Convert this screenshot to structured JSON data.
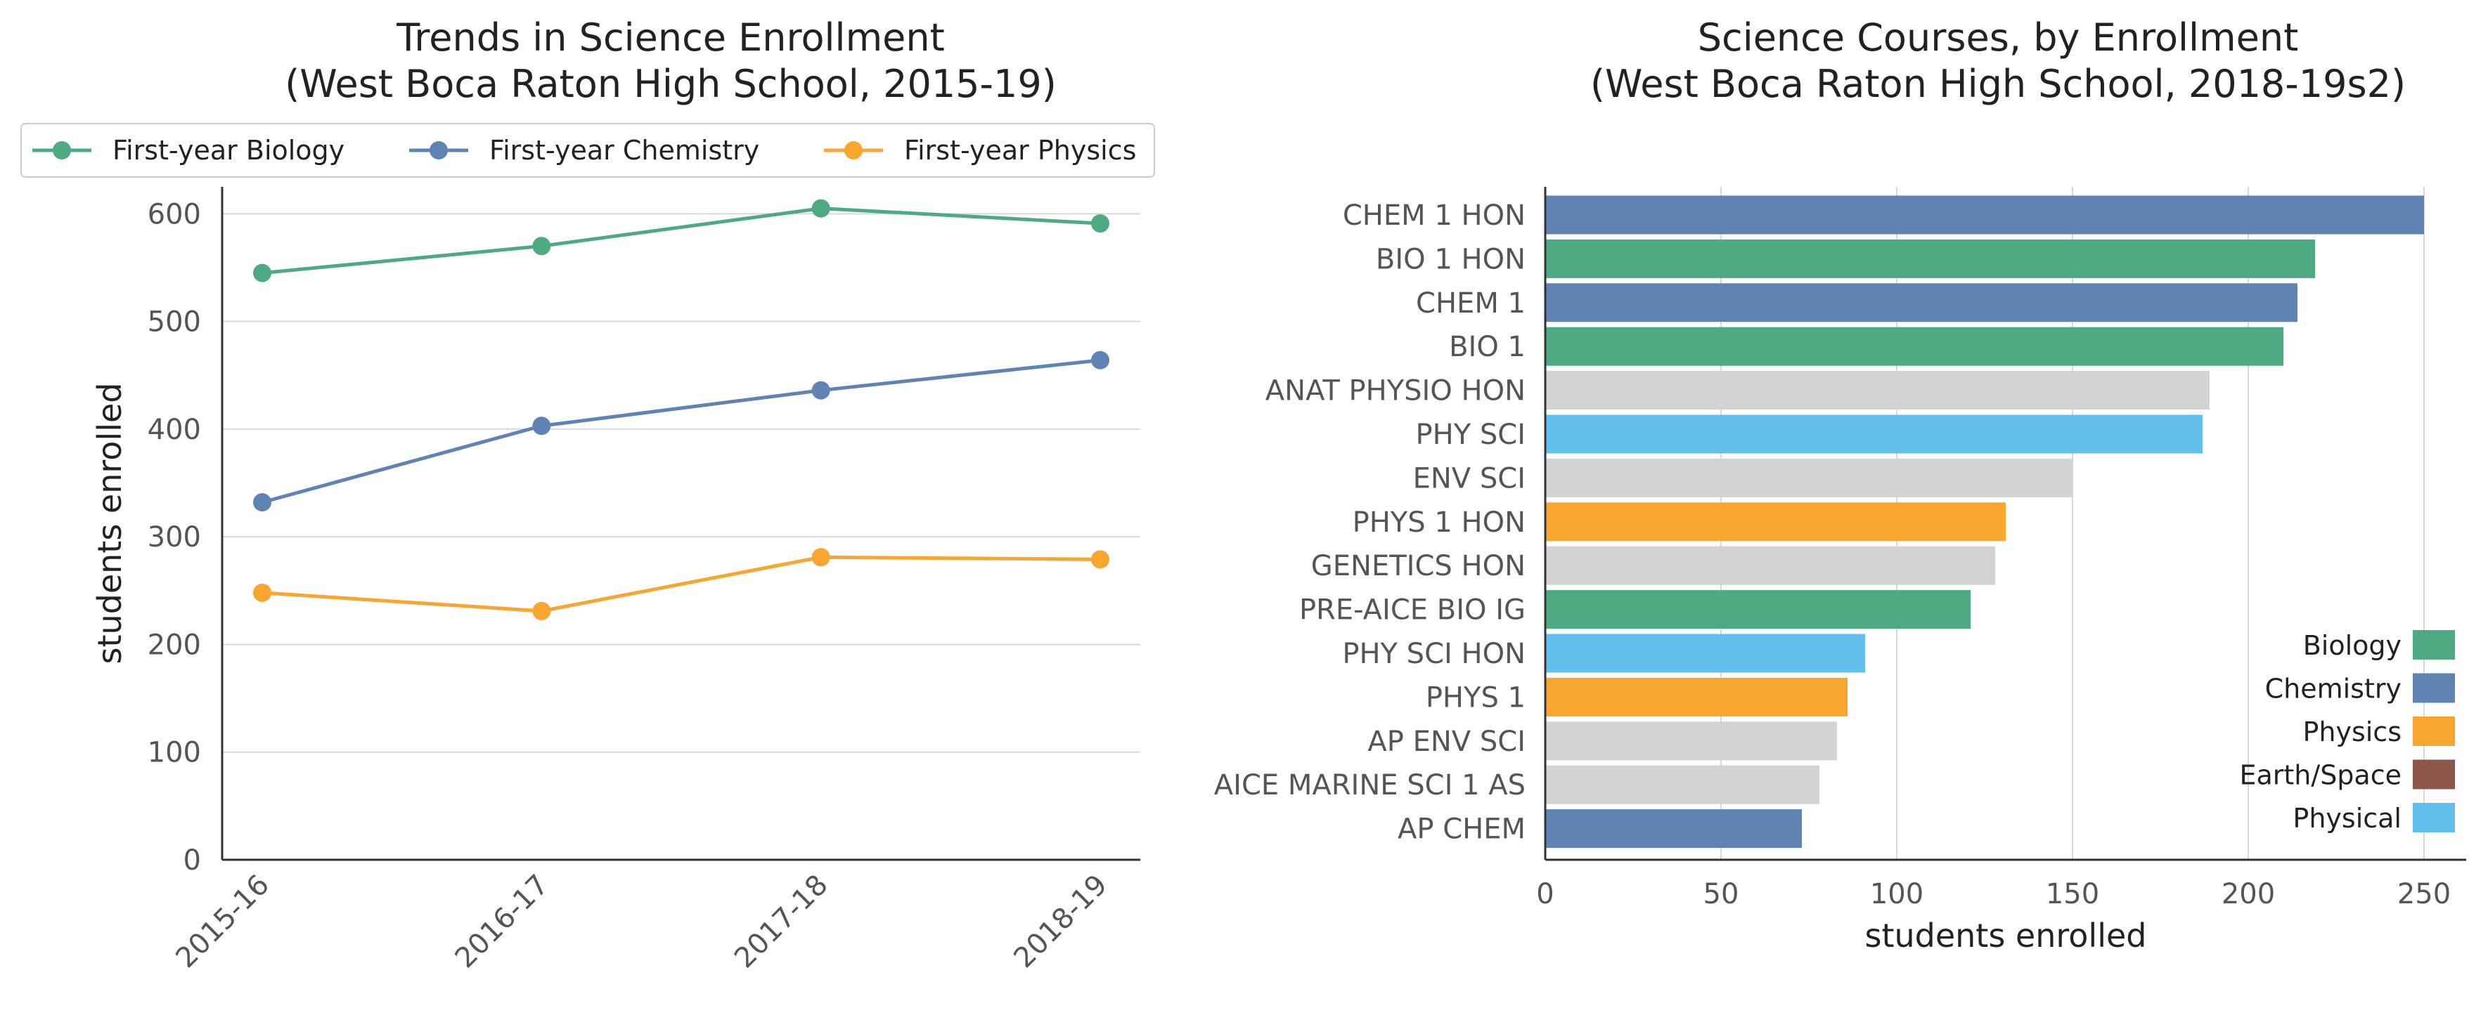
{
  "chart_data": [
    {
      "type": "line",
      "title": "Trends in Science Enrollment",
      "subtitle": "(West Boca Raton High School, 2015-19)",
      "xlabel": "",
      "ylabel": "students enrolled",
      "x": [
        "2015-16",
        "2016-17",
        "2017-18",
        "2018-19"
      ],
      "ylim": [
        0,
        625
      ],
      "yticks": [
        0,
        100,
        200,
        300,
        400,
        500,
        600
      ],
      "grid": "horizontal",
      "legend": "top",
      "series": [
        {
          "name": "First-year Biology",
          "color": "#4daa82",
          "values": [
            545,
            570,
            605,
            591
          ]
        },
        {
          "name": "First-year Chemistry",
          "color": "#5f84b3",
          "values": [
            332,
            403,
            436,
            464
          ]
        },
        {
          "name": "First-year Physics",
          "color": "#f9a630",
          "values": [
            248,
            231,
            281,
            279
          ]
        }
      ]
    },
    {
      "type": "bar",
      "orientation": "horizontal",
      "title": "Science Courses, by Enrollment",
      "subtitle": "(West Boca Raton High School, 2018-19s2)",
      "xlabel": "students enrolled",
      "ylabel": "",
      "xlim": [
        0,
        262
      ],
      "xticks": [
        0,
        50,
        100,
        150,
        200,
        250
      ],
      "grid": "vertical",
      "legend": "bottom-right",
      "categories": [
        "CHEM 1 HON",
        "BIO 1 HON",
        "CHEM 1",
        "BIO 1",
        "ANAT PHYSIO HON",
        "PHY SCI",
        "ENV SCI",
        "PHYS 1 HON",
        "GENETICS HON",
        "PRE-AICE BIO IG",
        "PHY SCI HON",
        "PHYS 1",
        "AP ENV SCI",
        "AICE MARINE SCI 1 AS",
        "AP CHEM"
      ],
      "values": [
        250,
        219,
        214,
        210,
        189,
        187,
        150,
        131,
        128,
        121,
        91,
        86,
        83,
        78,
        73
      ],
      "groups": [
        "Chemistry",
        "Biology",
        "Chemistry",
        "Biology",
        "Other",
        "Physical",
        "Other",
        "Physics",
        "Other",
        "Biology",
        "Physical",
        "Physics",
        "Other",
        "Other",
        "Chemistry"
      ],
      "group_colors": {
        "Biology": "#4daa82",
        "Chemistry": "#5f84b3",
        "Physics": "#f9a630",
        "Earth/Space": "#8c5648",
        "Physical": "#63bfec",
        "Other": "#d3d3d3"
      },
      "legend_entries": [
        "Biology",
        "Chemistry",
        "Physics",
        "Earth/Space",
        "Physical"
      ]
    }
  ]
}
